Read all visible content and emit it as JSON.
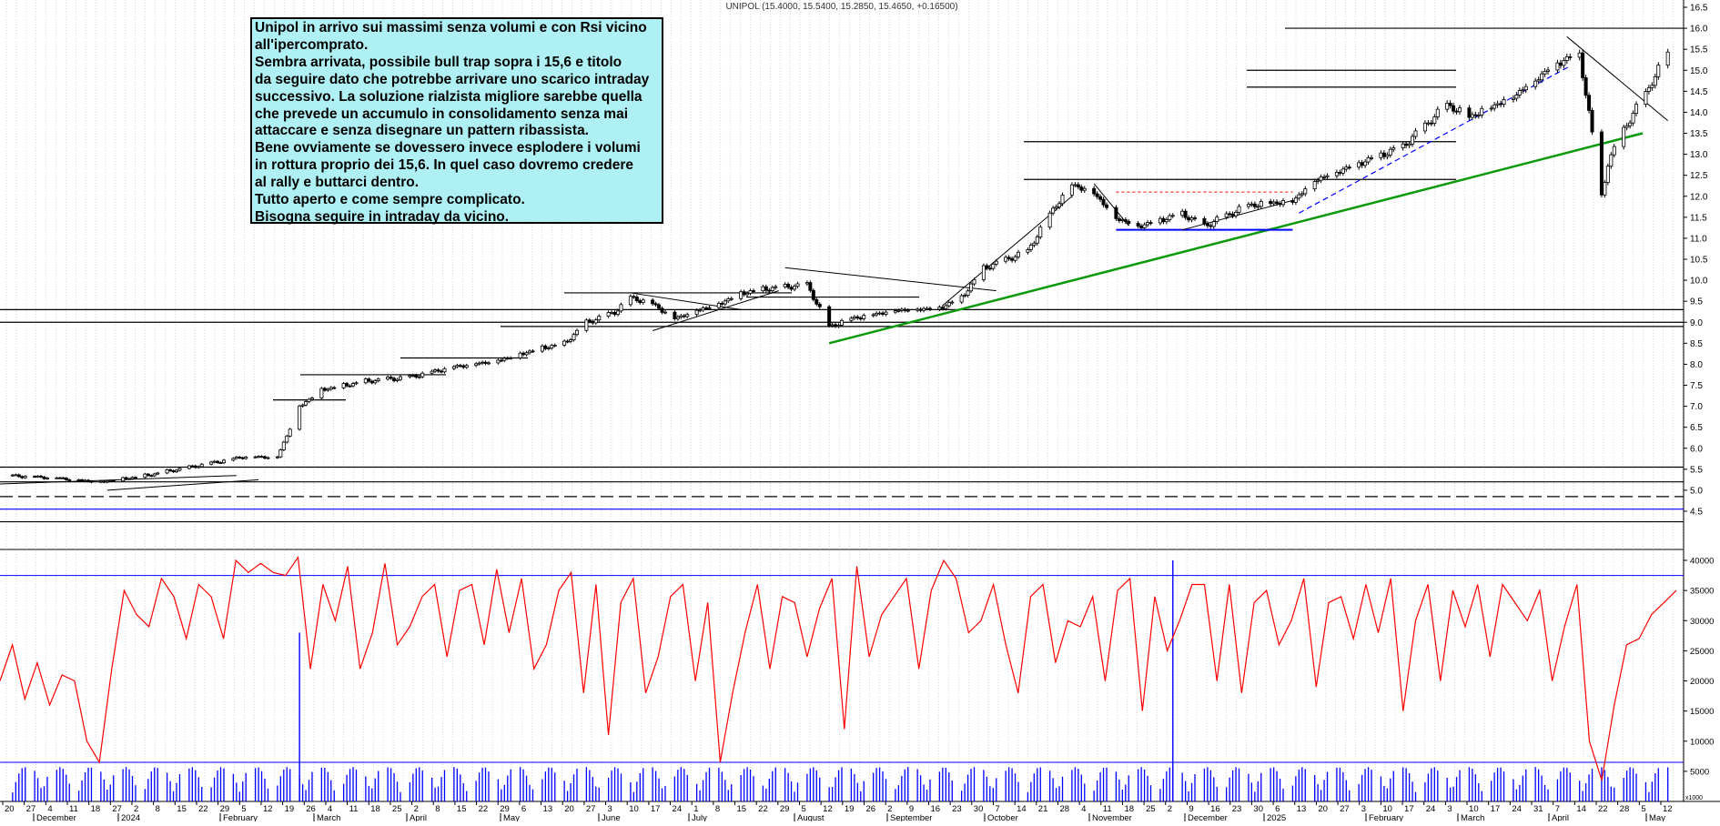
{
  "header": {
    "title": "UNIPOL (15.4000, 15.5400, 15.2850, 15.4650, +0.16500)"
  },
  "annotation": {
    "lines": [
      "Unipol in arrivo sui massimi senza volumi e con Rsi vicino",
      "all'ipercomprato.",
      "Sembra arrivata, possibile bull trap sopra i 15,6 e titolo",
      "da seguire dato che potrebbe arrivare uno scarico intraday",
      "successivo. La soluzione rialzista migliore sarebbe quella",
      "che prevede un accumulo in consolidamento senza mai",
      "attaccare e senza disegnare un pattern ribassista.",
      "Bene ovviamente se dovessero invece esplodere i volumi",
      "in rottura proprio dei 15,6. In quel caso dovremo credere",
      "al rally e buttarci dentro.",
      "Tutto aperto e come sempre complicato.",
      "Bisogna seguire in intraday da vicino."
    ]
  },
  "colors": {
    "candle_up": "#ffffff",
    "candle_down": "#000000",
    "green_trend": "#0a9a0a",
    "blue_line": "#0000ff",
    "red_dashed": "#ff0000",
    "oscillator_line": "#ff0000",
    "volume_bars": "#0000ff",
    "grid": "#b8b8b8",
    "annotation_bg": "#aef0f4"
  },
  "chart_data": [
    {
      "type": "candlestick",
      "title": "UNIPOL",
      "ylim": [
        4.5,
        16.5
      ],
      "ticks": [
        "16.5",
        "16.0",
        "15.5",
        "15.0",
        "14.5",
        "14.0",
        "13.5",
        "13.0",
        "12.5",
        "12.0",
        "11.5",
        "11.0",
        "10.5",
        "10.0",
        "9.5",
        "9.0",
        "8.5",
        "8.0",
        "7.5",
        "7.0",
        "6.5",
        "6.0",
        "5.5",
        "5.0",
        "4.5"
      ],
      "close_path": [
        [
          "2023-11-20",
          5.35
        ],
        [
          "2023-12-04",
          5.3
        ],
        [
          "2023-12-18",
          5.2
        ],
        [
          "2024-01-01",
          5.35
        ],
        [
          "2024-01-15",
          5.55
        ],
        [
          "2024-02-01",
          5.8
        ],
        [
          "2024-02-12",
          5.8
        ],
        [
          "2024-02-19",
          7.0
        ],
        [
          "2024-02-26",
          7.4
        ],
        [
          "2024-03-11",
          7.6
        ],
        [
          "2024-03-25",
          7.7
        ],
        [
          "2024-04-08",
          7.95
        ],
        [
          "2024-04-22",
          8.1
        ],
        [
          "2024-05-06",
          8.4
        ],
        [
          "2024-05-13",
          8.5
        ],
        [
          "2024-05-20",
          9.0
        ],
        [
          "2024-05-29",
          9.25
        ],
        [
          "2024-06-03",
          9.6
        ],
        [
          "2024-06-10",
          9.45
        ],
        [
          "2024-06-17",
          9.1
        ],
        [
          "2024-06-24",
          9.3
        ],
        [
          "2024-07-01",
          9.45
        ],
        [
          "2024-07-08",
          9.7
        ],
        [
          "2024-07-15",
          9.8
        ],
        [
          "2024-07-22",
          9.85
        ],
        [
          "2024-07-29",
          9.9
        ],
        [
          "2024-08-05",
          8.9
        ],
        [
          "2024-08-12",
          9.1
        ],
        [
          "2024-08-26",
          9.3
        ],
        [
          "2024-09-09",
          9.35
        ],
        [
          "2024-09-16",
          9.6
        ],
        [
          "2024-09-23",
          10.3
        ],
        [
          "2024-10-07",
          10.7
        ],
        [
          "2024-10-14",
          11.6
        ],
        [
          "2024-10-21",
          12.3
        ],
        [
          "2024-10-28",
          12.1
        ],
        [
          "2024-11-04",
          11.5
        ],
        [
          "2024-11-11",
          11.3
        ],
        [
          "2024-11-25",
          11.6
        ],
        [
          "2024-12-02",
          11.3
        ],
        [
          "2024-12-16",
          11.8
        ],
        [
          "2024-12-30",
          11.9
        ],
        [
          "2025-01-06",
          12.4
        ],
        [
          "2025-01-20",
          12.8
        ],
        [
          "2025-02-03",
          13.2
        ],
        [
          "2025-02-17",
          14.2
        ],
        [
          "2025-02-24",
          13.9
        ],
        [
          "2025-03-10",
          14.4
        ],
        [
          "2025-03-24",
          15.2
        ],
        [
          "2025-03-31",
          15.4
        ],
        [
          "2025-04-03",
          14.0
        ],
        [
          "2025-04-07",
          12.0
        ],
        [
          "2025-04-09",
          12.8
        ],
        [
          "2025-04-14",
          13.6
        ],
        [
          "2025-04-22",
          14.6
        ],
        [
          "2025-04-28",
          15.45
        ]
      ],
      "horizontal_levels": [
        16.0,
        15.0,
        14.6,
        13.3,
        12.4,
        9.7,
        9.6,
        9.3,
        9.0,
        8.9,
        8.15,
        7.75,
        7.15,
        5.55,
        5.2,
        4.85,
        4.55,
        4.25
      ],
      "annotation_levels": {
        "support_blue": 11.2,
        "consolidation_red_dashed": 12.1
      }
    },
    {
      "type": "line",
      "series": [
        {
          "values": [
            20000,
            26000,
            17000,
            23000,
            16000,
            21000,
            20000,
            10000,
            6500,
            22000,
            35000,
            31000,
            29000,
            37000,
            34000,
            27000,
            36000,
            34000,
            27000,
            40000,
            38000,
            39500,
            38000,
            37500,
            40500,
            22000,
            36000,
            30000,
            39000,
            22000,
            28000,
            39500,
            26000,
            29000,
            34000,
            36000,
            24000,
            35000,
            36000,
            26000,
            38500,
            28000,
            37000,
            22000,
            26000,
            35000,
            38000,
            18000,
            36000,
            11000,
            33000,
            37000,
            18000,
            24000,
            34000,
            36000,
            20000,
            33000,
            6500,
            18000,
            28000,
            36000,
            22000,
            34000,
            33000,
            24000,
            32000,
            37000,
            12000,
            39000,
            24000,
            31000,
            34000,
            37000,
            22000,
            35000,
            40000,
            37000,
            28000,
            30000,
            36000,
            26000,
            18000,
            34000,
            36000,
            23000,
            30000,
            29000,
            34000,
            20000,
            35000,
            37000,
            15000,
            34000,
            25000,
            30000,
            36000,
            36000,
            20000,
            36000,
            18000,
            33000,
            35000,
            26000,
            30000,
            37000,
            19000,
            33000,
            34000,
            27000,
            36000,
            28000,
            37000,
            15000,
            30000,
            36000,
            20000,
            35000,
            29000,
            36000,
            24000,
            36000,
            33000,
            30000,
            35000,
            20000,
            29000,
            36000,
            10000,
            3500,
            16000,
            26000,
            27000,
            31000,
            33000,
            35000
          ]
        }
      ],
      "ylim": [
        0,
        40000
      ],
      "ticks": [
        "40000",
        "35000",
        "30000",
        "25000",
        "20000",
        "15000",
        "10000",
        "5000"
      ],
      "levels": [
        37500,
        6500
      ]
    },
    {
      "type": "bar",
      "unit_label": "x1000",
      "ylim": [
        0,
        30000
      ],
      "spikes": [
        {
          "date": "2024-02-19",
          "value": 28000
        },
        {
          "date": "2024-11-22",
          "value": 40000
        }
      ]
    }
  ],
  "x_axis": {
    "day_labels": [
      "20",
      "27",
      "4",
      "11",
      "18",
      "27",
      "2",
      "8",
      "15",
      "22",
      "29",
      "5",
      "12",
      "19",
      "26",
      "4",
      "11",
      "18",
      "25",
      "2",
      "8",
      "15",
      "22",
      "29",
      "6",
      "13",
      "20",
      "27",
      "3",
      "10",
      "17",
      "24",
      "1",
      "8",
      "15",
      "22",
      "29",
      "5",
      "12",
      "19",
      "26",
      "2",
      "9",
      "16",
      "23",
      "30",
      "7",
      "14",
      "21",
      "28",
      "4",
      "11",
      "18",
      "25",
      "2",
      "9",
      "16",
      "23",
      "30",
      "6",
      "13",
      "20",
      "27",
      "3",
      "10",
      "17",
      "24",
      "3",
      "10",
      "17",
      "24",
      "31",
      "7",
      "14",
      "22",
      "28",
      "5",
      "12"
    ],
    "month_labels": [
      "December",
      "2024",
      "February",
      "March",
      "April",
      "May",
      "June",
      "July",
      "August",
      "September",
      "October",
      "November",
      "December",
      "2025",
      "February",
      "March",
      "April",
      "May"
    ]
  }
}
